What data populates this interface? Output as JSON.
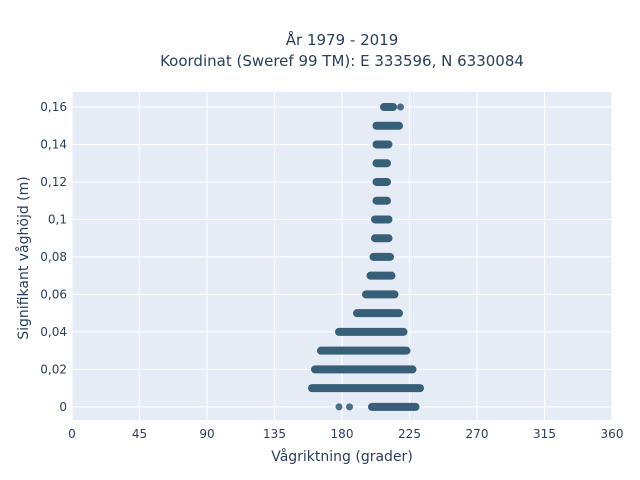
{
  "chart_data": {
    "type": "scatter",
    "title": "År 1979 - 2019",
    "subtitle": "Koordinat (Sweref 99 TM): E 333596, N 6330084",
    "xlabel": "Vågriktning (grader)",
    "ylabel": "Signifikant våghöjd (m)",
    "xlim": [
      0,
      360
    ],
    "ylim": [
      -0.007,
      0.168
    ],
    "x_ticks": [
      0,
      45,
      90,
      135,
      180,
      225,
      270,
      315,
      360
    ],
    "x_tick_labels": [
      "0",
      "45",
      "90",
      "135",
      "180",
      "225",
      "270",
      "315",
      "360"
    ],
    "y_ticks": [
      0,
      0.02,
      0.04,
      0.06,
      0.08,
      0.1,
      0.12,
      0.14,
      0.16
    ],
    "y_tick_labels": [
      "0",
      "0,02",
      "0,04",
      "0,06",
      "0,08",
      "0,1",
      "0,12",
      "0,14",
      "0,16"
    ],
    "grid": true,
    "marker_color": "#2e5872",
    "background": "#e5ecf6",
    "bands": [
      {
        "y": 0,
        "x_min": 200,
        "x_max": 229,
        "outliers": [
          178,
          185
        ]
      },
      {
        "y": 0.01,
        "x_min": 160,
        "x_max": 232,
        "outliers": []
      },
      {
        "y": 0.02,
        "x_min": 162,
        "x_max": 227,
        "outliers": []
      },
      {
        "y": 0.03,
        "x_min": 166,
        "x_max": 223,
        "outliers": []
      },
      {
        "y": 0.04,
        "x_min": 178,
        "x_max": 221,
        "outliers": []
      },
      {
        "y": 0.05,
        "x_min": 190,
        "x_max": 218,
        "outliers": []
      },
      {
        "y": 0.06,
        "x_min": 196,
        "x_max": 215,
        "outliers": []
      },
      {
        "y": 0.07,
        "x_min": 199,
        "x_max": 213,
        "outliers": []
      },
      {
        "y": 0.08,
        "x_min": 201,
        "x_max": 212,
        "outliers": []
      },
      {
        "y": 0.09,
        "x_min": 202,
        "x_max": 211,
        "outliers": []
      },
      {
        "y": 0.1,
        "x_min": 202,
        "x_max": 211,
        "outliers": []
      },
      {
        "y": 0.11,
        "x_min": 203,
        "x_max": 210,
        "outliers": []
      },
      {
        "y": 0.12,
        "x_min": 203,
        "x_max": 210,
        "outliers": []
      },
      {
        "y": 0.13,
        "x_min": 203,
        "x_max": 210,
        "outliers": []
      },
      {
        "y": 0.14,
        "x_min": 203,
        "x_max": 211,
        "outliers": []
      },
      {
        "y": 0.15,
        "x_min": 203,
        "x_max": 218,
        "outliers": []
      },
      {
        "y": 0.16,
        "x_min": 208,
        "x_max": 214,
        "outliers": [
          219
        ]
      }
    ]
  }
}
